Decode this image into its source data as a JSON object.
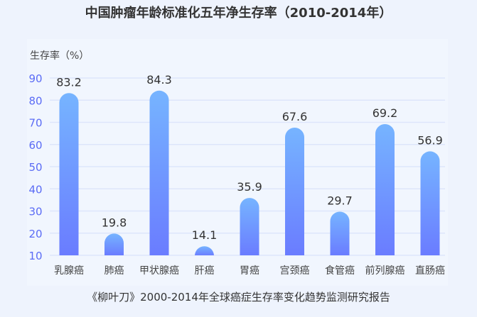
{
  "chart_data": {
    "type": "bar",
    "title": "中国肿瘤年龄标准化五年净生存率（2010-2014年）",
    "ylabel": "生存率（%）",
    "xlabel": "",
    "categories": [
      "乳腺癌",
      "肺癌",
      "甲状腺癌",
      "肝癌",
      "胃癌",
      "宫颈癌",
      "食管癌",
      "前列腺癌",
      "直肠癌"
    ],
    "values": [
      83.2,
      19.8,
      84.3,
      14.1,
      35.9,
      67.6,
      29.7,
      69.2,
      56.9
    ],
    "ylim": [
      10,
      90
    ],
    "yticks": [
      10,
      20,
      30,
      40,
      50,
      60,
      70,
      80,
      90
    ],
    "grid": true,
    "legend": "none",
    "colors": {
      "bar_top": "#76b4ff",
      "bar_bottom": "#6a7cff",
      "tick_label": "#5b6cf5",
      "grid": "#dde5fb"
    },
    "source": "《柳叶刀》2000-2014年全球癌症生存率变化趋势监测研究报告"
  }
}
